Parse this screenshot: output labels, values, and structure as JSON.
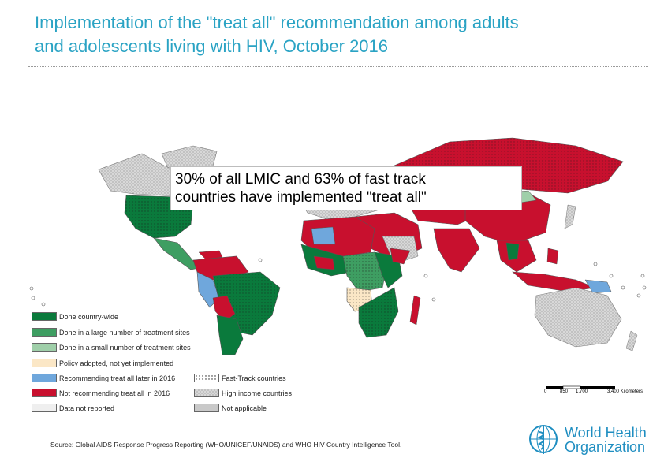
{
  "title": {
    "line1": "Implementation of the \"treat all\" recommendation among adults",
    "line2": "and adolescents living with HIV, October 2016"
  },
  "callout": {
    "line1": "30% of all LMIC and 63% of fast track",
    "line2": "countries have implemented \"treat all\""
  },
  "legend": {
    "items": [
      {
        "label": "Done country-wide",
        "color": "#0a7a3c",
        "pattern": "solid"
      },
      {
        "label": "Done in a large number of treatment sites",
        "color": "#3e9e62",
        "pattern": "solid"
      },
      {
        "label": "Done in a small number of treatment sites",
        "color": "#9fcfa9",
        "pattern": "solid"
      },
      {
        "label": "Policy adopted, not yet implemented",
        "color": "#fbe7c6",
        "pattern": "solid"
      },
      {
        "label": "Recommending treat all later in 2016",
        "color": "#6fa7dc",
        "pattern": "solid"
      },
      {
        "label": "Not recommending treat all in 2016",
        "color": "#c8102e",
        "pattern": "solid"
      },
      {
        "label": "Data not reported",
        "color": "#efefef",
        "pattern": "solid"
      },
      {
        "label": "Fast-Track countries",
        "color": "#ffffff",
        "pattern": "dots"
      },
      {
        "label": "High income countries",
        "color": "#d6d6d6",
        "pattern": "hatch"
      },
      {
        "label": "Not applicable",
        "color": "#c9c9c9",
        "pattern": "solid"
      }
    ]
  },
  "scale": {
    "ticks": [
      "0",
      "850",
      "1,700",
      "3,400 Kilometers"
    ]
  },
  "source": "Source: Global AIDS Response Progress Reporting (WHO/UNICEF/UNAIDS) and WHO HIV Country Intelligence Tool.",
  "logo": {
    "line1": "World Health",
    "line2": "Organization"
  }
}
